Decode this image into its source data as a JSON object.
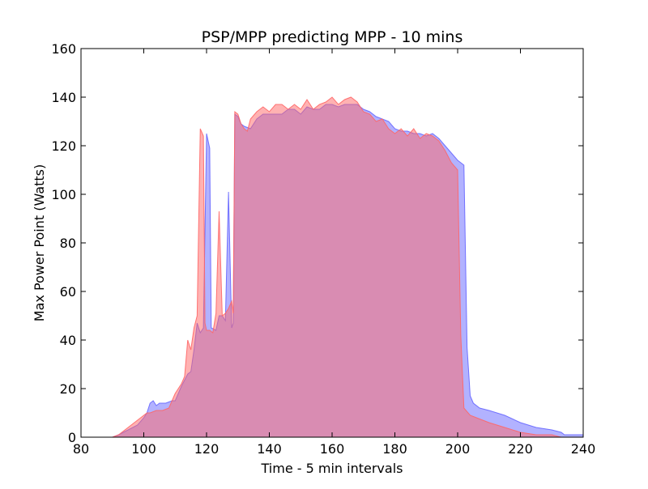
{
  "chart_data": {
    "type": "area",
    "title": "PSP/MPP predicting MPP - 10 mins",
    "xlabel": "Time - 5 min intervals",
    "ylabel": "Max Power Point (Watts)",
    "xlim": [
      80,
      240
    ],
    "ylim": [
      0,
      160
    ],
    "xticks": [
      80,
      100,
      120,
      140,
      160,
      180,
      200,
      220,
      240
    ],
    "yticks": [
      0,
      20,
      40,
      60,
      80,
      100,
      120,
      140,
      160
    ],
    "grid": false,
    "legend": "none",
    "series": [
      {
        "color": "#6666ff",
        "opacity": 0.5,
        "points": [
          [
            90,
            0
          ],
          [
            92,
            1
          ],
          [
            95,
            3
          ],
          [
            98,
            5
          ],
          [
            100,
            8
          ],
          [
            101,
            10
          ],
          [
            102,
            14
          ],
          [
            103,
            15
          ],
          [
            104,
            13
          ],
          [
            105,
            14
          ],
          [
            107,
            14
          ],
          [
            109,
            15
          ],
          [
            110,
            15
          ],
          [
            112,
            21
          ],
          [
            114,
            26
          ],
          [
            115,
            27
          ],
          [
            116,
            36
          ],
          [
            117,
            47
          ],
          [
            118,
            43
          ],
          [
            119,
            45
          ],
          [
            120,
            125
          ],
          [
            121,
            119
          ],
          [
            121.5,
            45
          ],
          [
            123,
            44
          ],
          [
            124,
            50
          ],
          [
            125,
            50
          ],
          [
            126,
            48
          ],
          [
            127,
            101
          ],
          [
            128,
            45
          ],
          [
            128.5,
            47
          ],
          [
            129,
            133
          ],
          [
            130,
            132
          ],
          [
            131,
            129
          ],
          [
            132,
            128
          ],
          [
            134,
            127
          ],
          [
            136,
            131
          ],
          [
            138,
            133
          ],
          [
            140,
            133
          ],
          [
            142,
            133
          ],
          [
            144,
            133
          ],
          [
            146,
            135
          ],
          [
            148,
            135
          ],
          [
            150,
            133
          ],
          [
            152,
            136
          ],
          [
            154,
            135
          ],
          [
            156,
            135
          ],
          [
            158,
            137
          ],
          [
            160,
            137
          ],
          [
            162,
            136
          ],
          [
            164,
            137
          ],
          [
            166,
            137
          ],
          [
            168,
            137
          ],
          [
            170,
            135
          ],
          [
            172,
            134
          ],
          [
            174,
            132
          ],
          [
            176,
            131
          ],
          [
            178,
            130
          ],
          [
            180,
            127
          ],
          [
            182,
            126
          ],
          [
            184,
            126
          ],
          [
            186,
            125
          ],
          [
            188,
            125
          ],
          [
            190,
            124
          ],
          [
            192,
            125
          ],
          [
            194,
            123
          ],
          [
            196,
            120
          ],
          [
            198,
            117
          ],
          [
            200,
            114
          ],
          [
            202,
            112
          ],
          [
            203,
            37
          ],
          [
            204,
            17
          ],
          [
            205,
            14
          ],
          [
            207,
            12
          ],
          [
            210,
            11
          ],
          [
            215,
            9
          ],
          [
            220,
            6
          ],
          [
            225,
            4
          ],
          [
            230,
            3
          ],
          [
            233,
            2
          ],
          [
            234,
            1
          ],
          [
            236,
            1
          ],
          [
            240,
            1
          ]
        ]
      },
      {
        "color": "#ff6666",
        "opacity": 0.5,
        "points": [
          [
            90,
            0
          ],
          [
            92,
            1
          ],
          [
            94,
            3
          ],
          [
            96,
            5
          ],
          [
            98,
            7
          ],
          [
            100,
            9
          ],
          [
            101,
            10
          ],
          [
            102,
            10
          ],
          [
            104,
            11
          ],
          [
            106,
            11
          ],
          [
            108,
            12
          ],
          [
            109,
            15
          ],
          [
            110,
            18
          ],
          [
            112,
            22
          ],
          [
            113,
            25
          ],
          [
            114,
            40
          ],
          [
            115,
            36
          ],
          [
            116,
            45
          ],
          [
            117,
            50
          ],
          [
            118,
            127
          ],
          [
            119,
            124
          ],
          [
            119.5,
            47
          ],
          [
            120,
            44
          ],
          [
            121,
            44
          ],
          [
            122,
            43
          ],
          [
            123,
            51
          ],
          [
            124,
            93
          ],
          [
            125,
            50
          ],
          [
            126,
            51
          ],
          [
            127,
            53
          ],
          [
            128,
            56
          ],
          [
            128.5,
            51
          ],
          [
            129,
            134
          ],
          [
            130,
            133
          ],
          [
            131,
            129
          ],
          [
            132,
            127
          ],
          [
            133,
            126
          ],
          [
            134,
            131
          ],
          [
            136,
            134
          ],
          [
            138,
            136
          ],
          [
            140,
            134
          ],
          [
            142,
            137
          ],
          [
            144,
            137
          ],
          [
            146,
            135
          ],
          [
            148,
            137
          ],
          [
            150,
            135
          ],
          [
            152,
            139
          ],
          [
            154,
            135
          ],
          [
            156,
            137
          ],
          [
            158,
            138
          ],
          [
            160,
            140
          ],
          [
            162,
            137
          ],
          [
            164,
            139
          ],
          [
            166,
            140
          ],
          [
            168,
            138
          ],
          [
            170,
            134
          ],
          [
            172,
            133
          ],
          [
            174,
            130
          ],
          [
            176,
            131
          ],
          [
            178,
            127
          ],
          [
            180,
            125
          ],
          [
            182,
            127
          ],
          [
            184,
            124
          ],
          [
            186,
            127
          ],
          [
            188,
            123
          ],
          [
            190,
            125
          ],
          [
            192,
            124
          ],
          [
            194,
            122
          ],
          [
            196,
            118
          ],
          [
            198,
            113
          ],
          [
            200,
            110
          ],
          [
            201,
            42
          ],
          [
            202,
            12
          ],
          [
            204,
            9
          ],
          [
            206,
            8
          ],
          [
            210,
            6
          ],
          [
            215,
            4
          ],
          [
            220,
            2
          ],
          [
            225,
            1
          ],
          [
            230,
            1
          ],
          [
            233,
            0
          ]
        ]
      }
    ]
  }
}
